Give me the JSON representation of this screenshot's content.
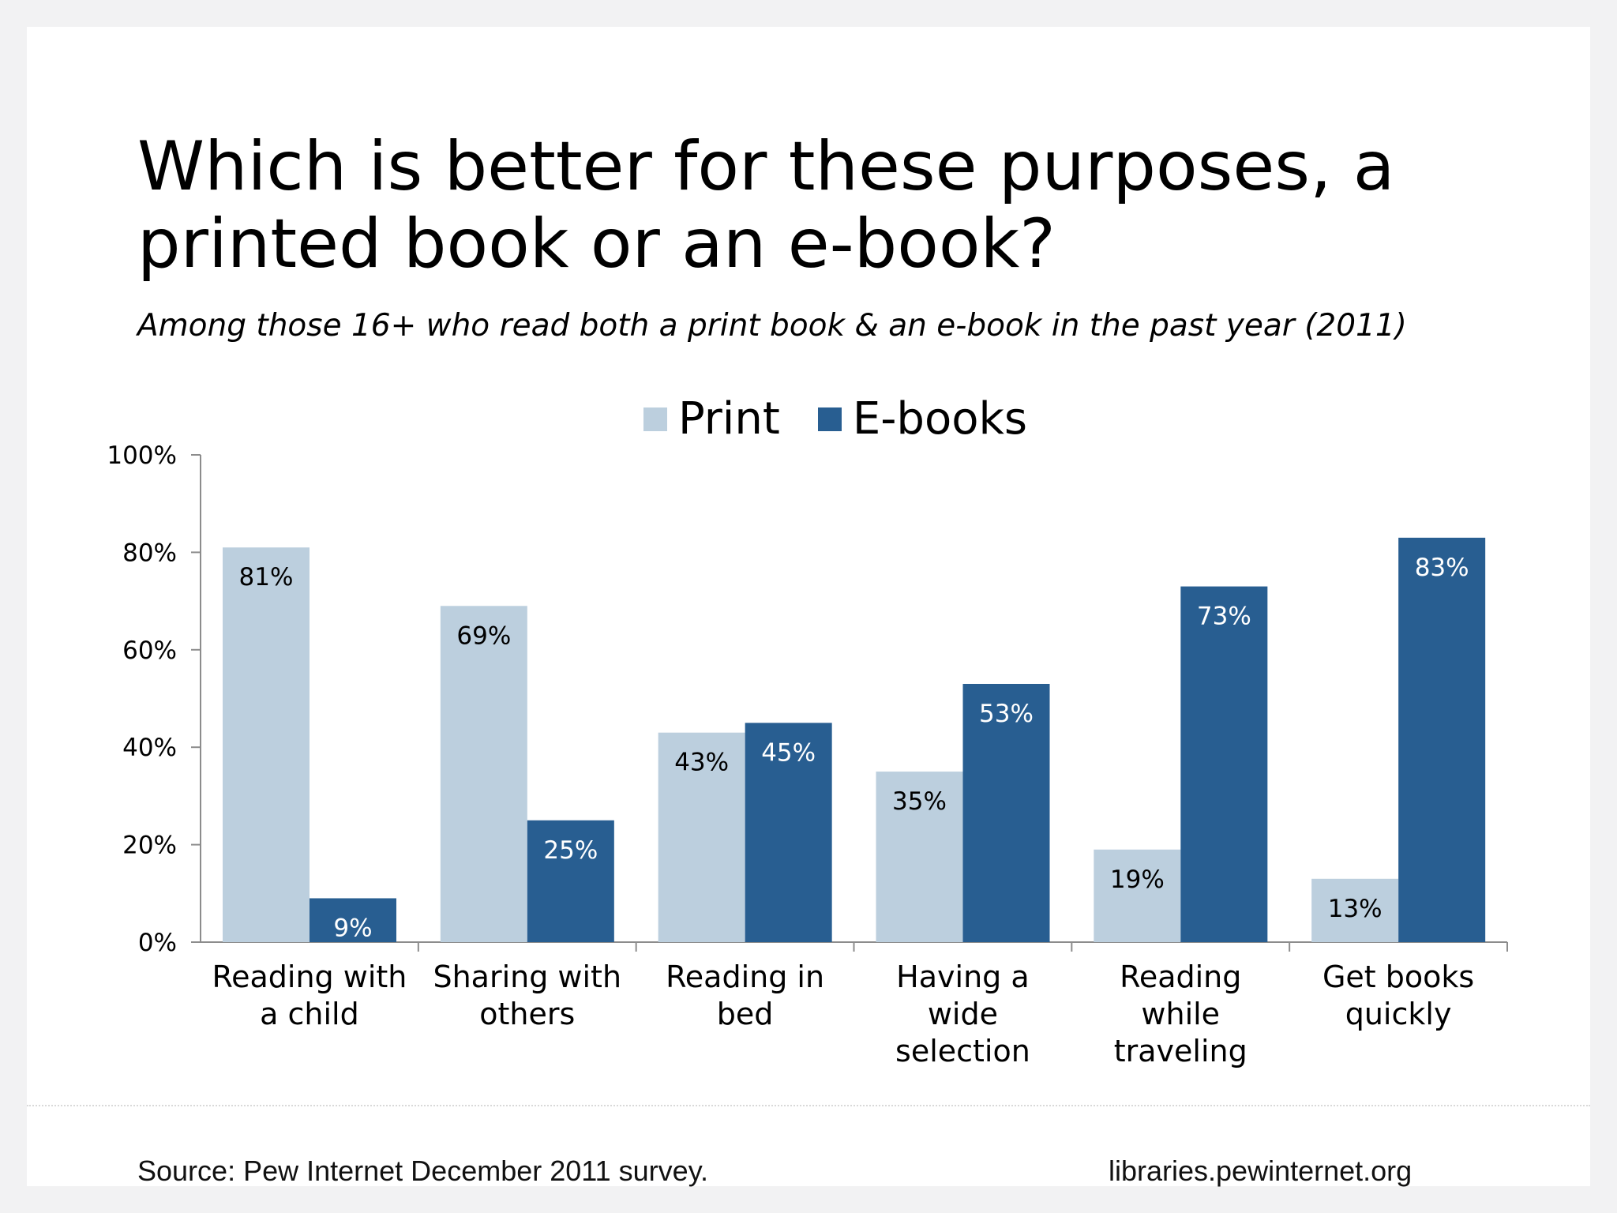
{
  "colors": {
    "print": "#bccfde",
    "ebooks": "#285e91"
  },
  "chart_data": {
    "type": "bar",
    "title": [
      "Which is better for these purposes, a",
      "printed book or an e-book?"
    ],
    "subtitle": "Among those 16+ who read both a print book & an e-book in the past year (2011)",
    "categories": [
      [
        "Reading with",
        "a child"
      ],
      [
        "Sharing with",
        "others"
      ],
      [
        "Reading in",
        "bed"
      ],
      [
        "Having a",
        "wide",
        "selection"
      ],
      [
        "Reading",
        "while",
        "traveling"
      ],
      [
        "Get books",
        "quickly"
      ]
    ],
    "series": [
      {
        "name": "Print",
        "values": [
          81,
          69,
          43,
          35,
          19,
          13
        ]
      },
      {
        "name": "E-books",
        "values": [
          9,
          25,
          45,
          53,
          73,
          83
        ]
      }
    ],
    "ylim": [
      0,
      100
    ],
    "yticks": [
      0,
      20,
      40,
      60,
      80,
      100
    ],
    "ytick_suffix": "%",
    "data_label_suffix": "%",
    "legend_position": "top-center",
    "grid": false
  },
  "footer": {
    "source": "Source: Pew Internet December 2011 survey.",
    "site": "libraries.pewinternet.org"
  }
}
